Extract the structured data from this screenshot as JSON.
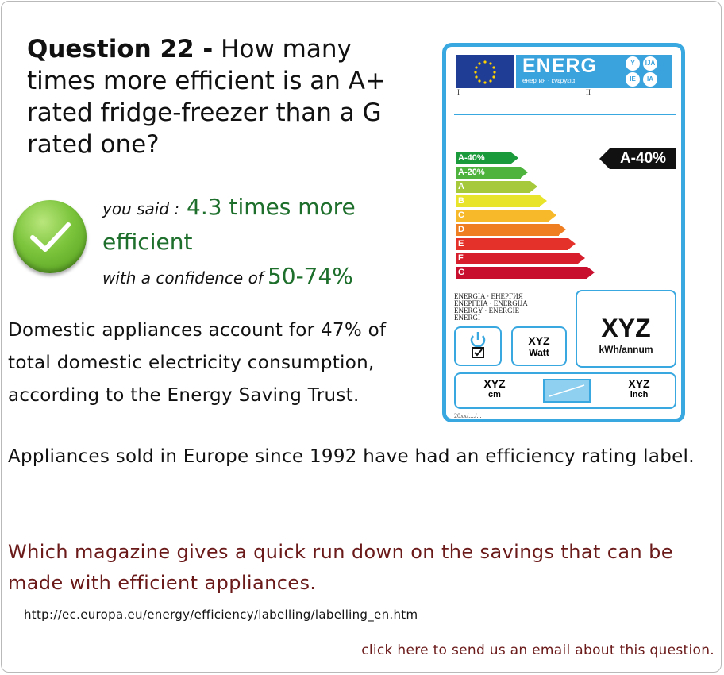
{
  "question": {
    "number_label": "Question 22 -",
    "text": "How many times more efficient is an A+ rated fridge-freezer than a G rated one?"
  },
  "answer": {
    "you_said_prefix": "you said :",
    "value": "4.3 times more efficient",
    "confidence_prefix": "with a confidence of",
    "confidence_value": "50-74%",
    "status_icon": "checkmark-icon",
    "accent_color": "#1e6f2c"
  },
  "info": {
    "paragraph1": "Domestic appliances account for 47% of total domestic electricity consumption, according to the Energy Saving Trust.",
    "paragraph2": "Appliances sold in Europe since 1992 have had an efficiency rating label.",
    "paragraph3": "Which magazine gives a quick run down on the savings that can be made with efficient appliances.",
    "link_url": "http://ec.europa.eu/energy/efficiency/labelling/labelling_en.htm",
    "email_link": "click here to send us an email about this question.",
    "link_color": "#6b1a1a"
  },
  "energy_label": {
    "header": "ENERG",
    "header_sub": "енергия · ενεργεια",
    "lang_badges": [
      "Y",
      "IJA",
      "IE",
      "IA"
    ],
    "roman_i": "I",
    "roman_ii": "II",
    "rating_marker": "A-40%",
    "classes": [
      {
        "label": "A-40%",
        "color": "#1a9a3a"
      },
      {
        "label": "A-20%",
        "color": "#4db33d"
      },
      {
        "label": "A",
        "color": "#a5c93a"
      },
      {
        "label": "B",
        "color": "#e8e32b"
      },
      {
        "label": "C",
        "color": "#f7b82a"
      },
      {
        "label": "D",
        "color": "#ef7d22"
      },
      {
        "label": "E",
        "color": "#e4322b"
      },
      {
        "label": "F",
        "color": "#d61e2c"
      },
      {
        "label": "G",
        "color": "#c8102e"
      }
    ],
    "energia_text": [
      "ENERGIA · ЕНЕРГИЯ",
      "ENEPΓEIA · ENERGIJA",
      "ENERGY · ENERGIE",
      "ENERGI"
    ],
    "kwh_value": "XYZ",
    "kwh_unit": "kWh/annum",
    "watt_value": "XYZ",
    "watt_unit": "Watt",
    "size_cm_value": "XYZ",
    "size_cm_unit": "cm",
    "size_inch_value": "XYZ",
    "size_inch_unit": "inch",
    "date": "20xx/..../..."
  }
}
